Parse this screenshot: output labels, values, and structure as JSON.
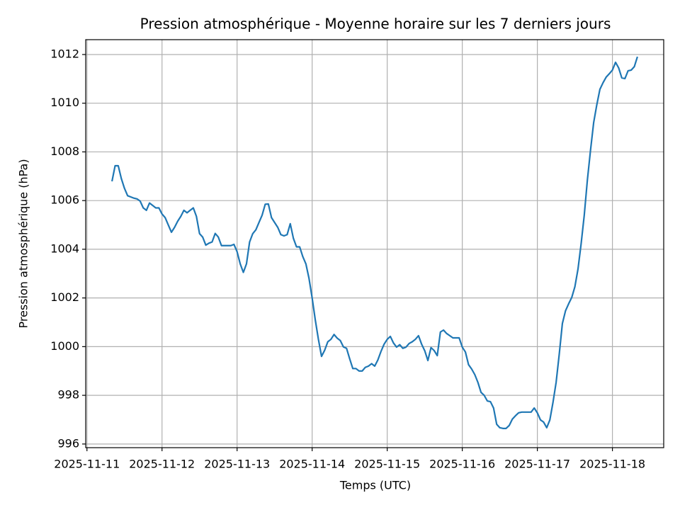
{
  "chart_data": {
    "type": "line",
    "title": "Pression atmosphérique - Moyenne horaire sur les 7 derniers jours",
    "xlabel": "Temps (UTC)",
    "ylabel": "Pression atmosphérique (hPa)",
    "color": "#1f77b4",
    "grid": true,
    "xlim": [
      "2025-11-10 23:36",
      "2025-11-18 16:24"
    ],
    "xticks": [
      "2025-11-11",
      "2025-11-12",
      "2025-11-13",
      "2025-11-14",
      "2025-11-15",
      "2025-11-16",
      "2025-11-17",
      "2025-11-18"
    ],
    "ylim": [
      995.85,
      1012.61
    ],
    "yticks": [
      996,
      998,
      1000,
      1002,
      1004,
      1006,
      1008,
      1010,
      1012
    ],
    "x": [
      "2025-11-11 08:00",
      "2025-11-11 09:00",
      "2025-11-11 10:00",
      "2025-11-11 11:00",
      "2025-11-11 12:00",
      "2025-11-11 13:00",
      "2025-11-11 14:00",
      "2025-11-11 15:00",
      "2025-11-11 16:00",
      "2025-11-11 17:00",
      "2025-11-11 18:00",
      "2025-11-11 19:00",
      "2025-11-11 20:00",
      "2025-11-11 21:00",
      "2025-11-11 22:00",
      "2025-11-11 23:00",
      "2025-11-12 00:00",
      "2025-11-12 01:00",
      "2025-11-12 02:00",
      "2025-11-12 03:00",
      "2025-11-12 04:00",
      "2025-11-12 05:00",
      "2025-11-12 06:00",
      "2025-11-12 07:00",
      "2025-11-12 08:00",
      "2025-11-12 09:00",
      "2025-11-12 10:00",
      "2025-11-12 11:00",
      "2025-11-12 12:00",
      "2025-11-12 13:00",
      "2025-11-12 14:00",
      "2025-11-12 15:00",
      "2025-11-12 16:00",
      "2025-11-12 17:00",
      "2025-11-12 18:00",
      "2025-11-12 19:00",
      "2025-11-12 20:00",
      "2025-11-12 21:00",
      "2025-11-12 22:00",
      "2025-11-12 23:00",
      "2025-11-13 00:00",
      "2025-11-13 01:00",
      "2025-11-13 02:00",
      "2025-11-13 03:00",
      "2025-11-13 04:00",
      "2025-11-13 05:00",
      "2025-11-13 06:00",
      "2025-11-13 07:00",
      "2025-11-13 08:00",
      "2025-11-13 09:00",
      "2025-11-13 10:00",
      "2025-11-13 11:00",
      "2025-11-13 12:00",
      "2025-11-13 13:00",
      "2025-11-13 14:00",
      "2025-11-13 15:00",
      "2025-11-13 16:00",
      "2025-11-13 17:00",
      "2025-11-13 18:00",
      "2025-11-13 19:00",
      "2025-11-13 20:00",
      "2025-11-13 21:00",
      "2025-11-13 22:00",
      "2025-11-13 23:00",
      "2025-11-14 00:00",
      "2025-11-14 01:00",
      "2025-11-14 02:00",
      "2025-11-14 03:00",
      "2025-11-14 04:00",
      "2025-11-14 05:00",
      "2025-11-14 06:00",
      "2025-11-14 07:00",
      "2025-11-14 08:00",
      "2025-11-14 09:00",
      "2025-11-14 10:00",
      "2025-11-14 11:00",
      "2025-11-14 12:00",
      "2025-11-14 13:00",
      "2025-11-14 14:00",
      "2025-11-14 15:00",
      "2025-11-14 16:00",
      "2025-11-14 17:00",
      "2025-11-14 18:00",
      "2025-11-14 19:00",
      "2025-11-14 20:00",
      "2025-11-14 21:00",
      "2025-11-14 22:00",
      "2025-11-14 23:00",
      "2025-11-15 00:00",
      "2025-11-15 01:00",
      "2025-11-15 02:00",
      "2025-11-15 03:00",
      "2025-11-15 04:00",
      "2025-11-15 05:00",
      "2025-11-15 06:00",
      "2025-11-15 07:00",
      "2025-11-15 08:00",
      "2025-11-15 09:00",
      "2025-11-15 10:00",
      "2025-11-15 11:00",
      "2025-11-15 12:00",
      "2025-11-15 13:00",
      "2025-11-15 14:00",
      "2025-11-15 15:00",
      "2025-11-15 16:00",
      "2025-11-15 17:00",
      "2025-11-15 18:00",
      "2025-11-15 19:00",
      "2025-11-15 20:00",
      "2025-11-15 21:00",
      "2025-11-15 22:00",
      "2025-11-15 23:00",
      "2025-11-16 00:00",
      "2025-11-16 01:00",
      "2025-11-16 02:00",
      "2025-11-16 03:00",
      "2025-11-16 04:00",
      "2025-11-16 05:00",
      "2025-11-16 06:00",
      "2025-11-16 07:00",
      "2025-11-16 08:00",
      "2025-11-16 09:00",
      "2025-11-16 10:00",
      "2025-11-16 11:00",
      "2025-11-16 12:00",
      "2025-11-16 13:00",
      "2025-11-16 14:00",
      "2025-11-16 15:00",
      "2025-11-16 16:00",
      "2025-11-16 17:00",
      "2025-11-16 18:00",
      "2025-11-16 19:00",
      "2025-11-16 20:00",
      "2025-11-16 21:00",
      "2025-11-16 22:00",
      "2025-11-16 23:00",
      "2025-11-17 00:00",
      "2025-11-17 01:00",
      "2025-11-17 02:00",
      "2025-11-17 03:00",
      "2025-11-17 04:00",
      "2025-11-17 05:00",
      "2025-11-17 06:00",
      "2025-11-17 07:00",
      "2025-11-17 08:00",
      "2025-11-17 09:00",
      "2025-11-17 10:00",
      "2025-11-17 11:00",
      "2025-11-17 12:00",
      "2025-11-17 13:00",
      "2025-11-17 14:00",
      "2025-11-17 15:00",
      "2025-11-17 16:00",
      "2025-11-17 17:00",
      "2025-11-17 18:00",
      "2025-11-17 19:00",
      "2025-11-17 20:00",
      "2025-11-17 21:00",
      "2025-11-17 22:00",
      "2025-11-17 23:00",
      "2025-11-18 00:00",
      "2025-11-18 01:00",
      "2025-11-18 02:00",
      "2025-11-18 03:00",
      "2025-11-18 04:00",
      "2025-11-18 05:00",
      "2025-11-18 06:00",
      "2025-11-18 07:00",
      "2025-11-18 08:00"
    ],
    "values": [
      1006.79,
      1007.43,
      1007.43,
      1006.9,
      1006.5,
      1006.2,
      1006.15,
      1006.1,
      1006.07,
      1005.98,
      1005.7,
      1005.6,
      1005.9,
      1005.8,
      1005.7,
      1005.7,
      1005.45,
      1005.3,
      1005.0,
      1004.7,
      1004.9,
      1005.15,
      1005.35,
      1005.6,
      1005.5,
      1005.6,
      1005.7,
      1005.35,
      1004.64,
      1004.5,
      1004.17,
      1004.25,
      1004.3,
      1004.65,
      1004.5,
      1004.15,
      1004.15,
      1004.15,
      1004.15,
      1004.2,
      1003.9,
      1003.4,
      1003.05,
      1003.4,
      1004.3,
      1004.64,
      1004.8,
      1005.1,
      1005.4,
      1005.85,
      1005.86,
      1005.3,
      1005.1,
      1004.9,
      1004.6,
      1004.55,
      1004.6,
      1005.05,
      1004.45,
      1004.1,
      1004.1,
      1003.7,
      1003.4,
      1002.8,
      1002.0,
      1001.1,
      1000.3,
      999.6,
      999.85,
      1000.2,
      1000.3,
      1000.5,
      1000.35,
      1000.25,
      999.99,
      999.93,
      999.5,
      999.1,
      999.1,
      999.0,
      999.0,
      999.15,
      999.2,
      999.3,
      999.2,
      999.45,
      999.8,
      1000.1,
      1000.3,
      1000.42,
      1000.15,
      999.98,
      1000.08,
      999.93,
      999.98,
      1000.13,
      1000.2,
      1000.3,
      1000.45,
      1000.1,
      999.83,
      999.43,
      999.96,
      999.84,
      999.63,
      1000.6,
      1000.68,
      1000.54,
      1000.45,
      1000.36,
      1000.36,
      1000.36,
      999.98,
      999.78,
      999.26,
      999.08,
      998.85,
      998.53,
      998.12,
      998.0,
      997.77,
      997.74,
      997.48,
      996.81,
      996.67,
      996.64,
      996.64,
      996.76,
      997.02,
      997.16,
      997.28,
      997.31,
      997.31,
      997.31,
      997.31,
      997.48,
      997.28,
      996.99,
      996.9,
      996.67,
      996.99,
      997.71,
      998.53,
      999.69,
      1000.95,
      1001.47,
      1001.76,
      1002.02,
      1002.46,
      1003.19,
      1004.23,
      1005.4,
      1006.85,
      1008.07,
      1009.2,
      1009.93,
      1010.57,
      1010.84,
      1011.07,
      1011.21,
      1011.36,
      1011.68,
      1011.45,
      1011.04,
      1011.01,
      1011.33,
      1011.36,
      1011.5,
      1011.91
    ]
  }
}
